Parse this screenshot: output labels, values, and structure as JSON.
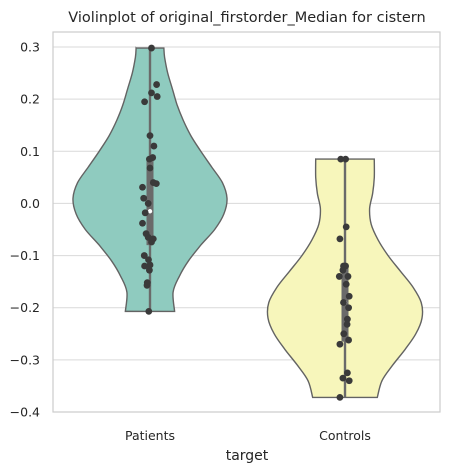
{
  "chart_data": {
    "type": "violin",
    "title": "Violinplot of original_firstorder_Median for cistern",
    "xlabel": "target",
    "ylabel": "",
    "ylim": [
      -0.4,
      0.32
    ],
    "yticks": [
      0.3,
      0.2,
      0.1,
      0.0,
      -0.1,
      -0.2,
      -0.3,
      -0.4
    ],
    "ytick_labels": [
      "0.3",
      "0.2",
      "0.1",
      "0.0",
      "−0.1",
      "−0.2",
      "−0.3",
      "−0.4"
    ],
    "grid": "horizontal",
    "categories": [
      "Patients",
      "Controls"
    ],
    "colors": {
      "Patients": "#8fcbbf",
      "Controls": "#f7f6bb"
    },
    "violins": [
      {
        "category": "Patients",
        "min": -0.207,
        "max": 0.298,
        "q1": -0.08,
        "median": -0.015,
        "q3": 0.085,
        "density_y": [
          0.298,
          0.28,
          0.25,
          0.22,
          0.19,
          0.16,
          0.13,
          0.1,
          0.07,
          0.04,
          0.01,
          -0.02,
          -0.05,
          -0.08,
          -0.11,
          -0.14,
          -0.17,
          -0.207
        ],
        "density_halfwidth": [
          0.18,
          0.19,
          0.23,
          0.29,
          0.35,
          0.43,
          0.53,
          0.66,
          0.8,
          0.94,
          1.0,
          0.96,
          0.84,
          0.66,
          0.5,
          0.38,
          0.3,
          0.32
        ],
        "points": [
          {
            "x": 0.05,
            "y": 0.298
          },
          {
            "x": -0.18,
            "y": 0.195
          },
          {
            "x": 0.05,
            "y": 0.212
          },
          {
            "x": 0.22,
            "y": 0.228
          },
          {
            "x": 0.24,
            "y": 0.205
          },
          {
            "x": 0.0,
            "y": 0.13
          },
          {
            "x": 0.13,
            "y": 0.11
          },
          {
            "x": -0.02,
            "y": 0.085
          },
          {
            "x": 0.09,
            "y": 0.088
          },
          {
            "x": 0.0,
            "y": 0.068
          },
          {
            "x": 0.11,
            "y": 0.04
          },
          {
            "x": 0.21,
            "y": 0.038
          },
          {
            "x": -0.25,
            "y": 0.031
          },
          {
            "x": -0.21,
            "y": 0.01
          },
          {
            "x": -0.06,
            "y": 0.0
          },
          {
            "x": -0.16,
            "y": -0.018
          },
          {
            "x": -0.25,
            "y": -0.038
          },
          {
            "x": -0.13,
            "y": -0.058
          },
          {
            "x": -0.06,
            "y": -0.065
          },
          {
            "x": 0.11,
            "y": -0.068
          },
          {
            "x": 0.05,
            "y": -0.074
          },
          {
            "x": -0.19,
            "y": -0.1
          },
          {
            "x": -0.05,
            "y": -0.108
          },
          {
            "x": 0.0,
            "y": -0.118
          },
          {
            "x": -0.18,
            "y": -0.12
          },
          {
            "x": -0.02,
            "y": -0.128
          },
          {
            "x": -0.09,
            "y": -0.152
          },
          {
            "x": -0.1,
            "y": -0.157
          },
          {
            "x": -0.04,
            "y": -0.207
          }
        ]
      },
      {
        "category": "Controls",
        "min": -0.372,
        "max": 0.085,
        "q1": -0.265,
        "median": -0.19,
        "q3": -0.12,
        "density_y": [
          0.085,
          0.05,
          0.02,
          -0.01,
          -0.04,
          -0.07,
          -0.1,
          -0.13,
          -0.16,
          -0.19,
          -0.22,
          -0.25,
          -0.28,
          -0.31,
          -0.34,
          -0.372
        ],
        "density_halfwidth": [
          0.38,
          0.38,
          0.36,
          0.32,
          0.34,
          0.43,
          0.56,
          0.72,
          0.88,
          0.99,
          1.0,
          0.92,
          0.78,
          0.62,
          0.48,
          0.42
        ],
        "points": [
          {
            "x": -0.14,
            "y": 0.085
          },
          {
            "x": 0.02,
            "y": 0.085
          },
          {
            "x": 0.04,
            "y": -0.045
          },
          {
            "x": -0.17,
            "y": -0.068
          },
          {
            "x": -0.05,
            "y": -0.12
          },
          {
            "x": 0.02,
            "y": -0.12
          },
          {
            "x": -0.07,
            "y": -0.128
          },
          {
            "x": -0.19,
            "y": -0.14
          },
          {
            "x": 0.1,
            "y": -0.14
          },
          {
            "x": 0.04,
            "y": -0.155
          },
          {
            "x": 0.14,
            "y": -0.178
          },
          {
            "x": -0.05,
            "y": -0.19
          },
          {
            "x": 0.12,
            "y": -0.2
          },
          {
            "x": 0.08,
            "y": -0.222
          },
          {
            "x": 0.07,
            "y": -0.232
          },
          {
            "x": -0.04,
            "y": -0.25
          },
          {
            "x": 0.12,
            "y": -0.262
          },
          {
            "x": -0.17,
            "y": -0.27
          },
          {
            "x": 0.08,
            "y": -0.325
          },
          {
            "x": -0.07,
            "y": -0.335
          },
          {
            "x": 0.14,
            "y": -0.34
          },
          {
            "x": -0.17,
            "y": -0.372
          }
        ]
      }
    ]
  }
}
